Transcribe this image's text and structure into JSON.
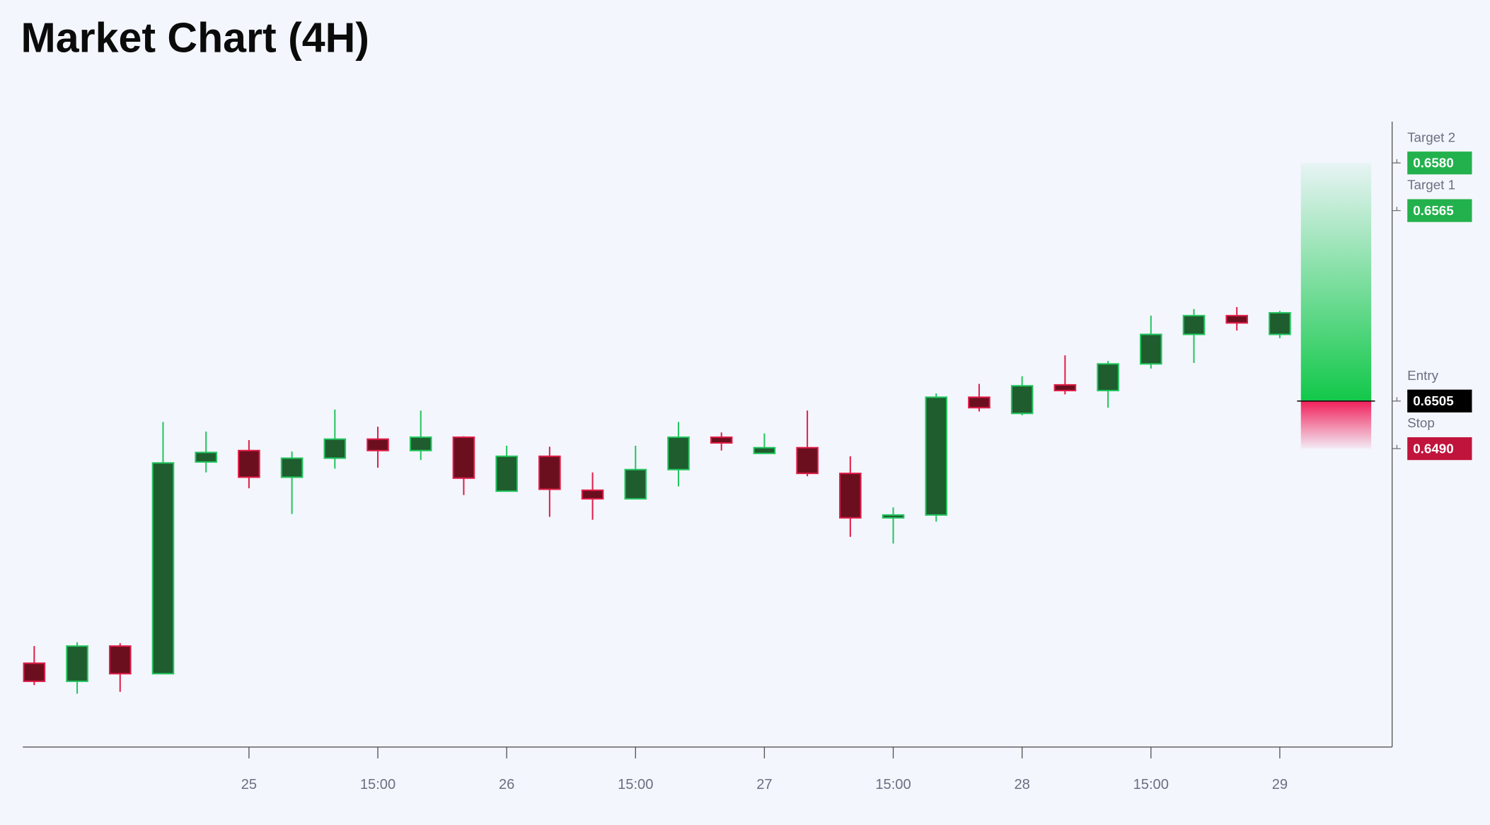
{
  "chart_data": {
    "type": "candlestick",
    "title": "Market Chart (4H)",
    "categories": [
      null,
      null,
      null,
      null,
      null,
      "25",
      null,
      null,
      "15:00",
      null,
      null,
      "26",
      null,
      null,
      "15:00",
      null,
      null,
      "27",
      null,
      null,
      "15:00",
      null,
      null,
      "28",
      null,
      null,
      "15:00",
      null,
      null,
      "29"
    ],
    "open": [
      0.64224,
      0.64167,
      0.64278,
      0.64191,
      0.64858,
      0.64894,
      0.6481,
      0.6487,
      0.6493,
      0.64894,
      0.64936,
      0.64766,
      0.64876,
      0.64769,
      0.64742,
      0.64834,
      0.64936,
      0.64885,
      0.64903,
      0.64822,
      0.64682,
      0.64691,
      0.65062,
      0.65011,
      0.65101,
      0.65083,
      0.65167,
      0.6526,
      0.65319,
      0.6526
    ],
    "high": [
      0.64278,
      0.6429,
      0.64287,
      0.64984,
      0.64954,
      0.64927,
      0.64891,
      0.65023,
      0.64969,
      0.6502,
      0.64939,
      0.64909,
      0.64906,
      0.64825,
      0.64909,
      0.64984,
      0.64951,
      0.64948,
      0.6502,
      0.64876,
      0.64715,
      0.65074,
      0.65104,
      0.65128,
      0.65194,
      0.65176,
      0.65319,
      0.6534,
      0.65346,
      0.65334
    ],
    "low": [
      0.64155,
      0.64128,
      0.64134,
      0.6419,
      0.64825,
      0.64775,
      0.64694,
      0.64837,
      0.6484,
      0.64864,
      0.64754,
      0.64766,
      0.64685,
      0.64676,
      0.64742,
      0.64781,
      0.64894,
      0.64885,
      0.64813,
      0.64622,
      0.64601,
      0.6467,
      0.65017,
      0.65005,
      0.65071,
      0.65029,
      0.65152,
      0.6517,
      0.65272,
      0.65248
    ],
    "close": [
      0.64167,
      0.64278,
      0.64191,
      0.64855,
      0.64888,
      0.6481,
      0.6487,
      0.6493,
      0.64894,
      0.64936,
      0.64807,
      0.64876,
      0.64772,
      0.64742,
      0.64834,
      0.64936,
      0.64918,
      0.64903,
      0.64822,
      0.64682,
      0.64691,
      0.65062,
      0.65029,
      0.65098,
      0.65083,
      0.65167,
      0.6526,
      0.65319,
      0.65296,
      0.65328
    ],
    "up_color": "#22c55e",
    "down_color": "#e11d48",
    "ylim": [
      0.6396,
      0.6593
    ],
    "levels": [
      {
        "name": "Target 2",
        "value": 0.658,
        "label": "0.6580",
        "color": "#22b14c"
      },
      {
        "name": "Target 1",
        "value": 0.6565,
        "label": "0.6565",
        "color": "#22b14c"
      },
      {
        "name": "Entry",
        "value": 0.6505,
        "label": "0.6505",
        "color": "#000000"
      },
      {
        "name": "Stop",
        "value": 0.649,
        "label": "0.6490",
        "color": "#c0143c"
      }
    ]
  }
}
